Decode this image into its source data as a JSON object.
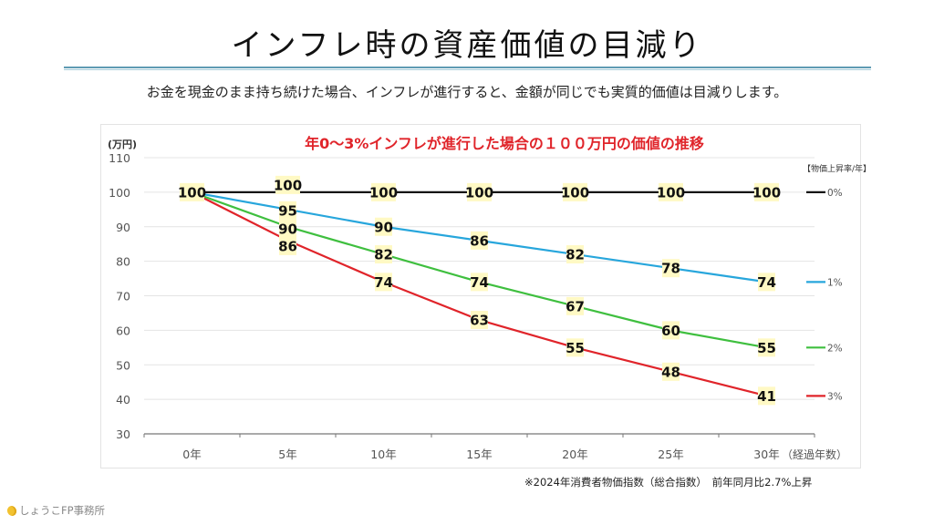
{
  "header": {
    "title": "インフレ時の資産価値の目減り",
    "subtitle": "お金を現金のまま持ち続けた場合、インフレが進行すると、金額が同じでも実質的価値は目減りします。"
  },
  "footer": {
    "note": "※2024年消費者物価指数（総合指数）　前年同月比2.7%上昇",
    "brand": "しょうこFP事務所",
    "brand_icon": "lemon-icon"
  },
  "chart_data": {
    "type": "line",
    "title": "年0〜3%インフレが進行した場合の１００万円の価値の推移",
    "title_color": "#e0242a",
    "ylabel": "(万円)",
    "xlabel": "（経過年数）",
    "ylim": [
      30,
      110
    ],
    "yticks": [
      30,
      40,
      50,
      60,
      70,
      80,
      90,
      100,
      110
    ],
    "ytick_labels": [
      "30",
      "40",
      "50",
      "60",
      "70",
      "80",
      "90",
      "100",
      "110"
    ],
    "categories": [
      "0年",
      "5年",
      "10年",
      "15年",
      "20年",
      "25年",
      "30年"
    ],
    "grid": true,
    "legend_title": "【物価上昇率/年】",
    "legend_position": "right",
    "data_label_bg": "#fff9c4",
    "series": [
      {
        "name": "0%",
        "color": "#111111",
        "values": [
          100,
          100,
          100,
          100,
          100,
          100,
          100
        ],
        "labels": [
          true,
          true,
          true,
          true,
          true,
          true,
          true
        ]
      },
      {
        "name": "1%",
        "color": "#27a6dc",
        "values": [
          100,
          95,
          90,
          86,
          82,
          78,
          74
        ],
        "labels": [
          false,
          true,
          true,
          true,
          true,
          true,
          true
        ]
      },
      {
        "name": "2%",
        "color": "#3fbf3f",
        "values": [
          100,
          90,
          82,
          74,
          67,
          60,
          55
        ],
        "labels": [
          false,
          true,
          true,
          true,
          true,
          true,
          true
        ]
      },
      {
        "name": "3%",
        "color": "#e0242a",
        "values": [
          100,
          86,
          74,
          63,
          55,
          48,
          41
        ],
        "labels": [
          false,
          true,
          true,
          true,
          true,
          true,
          true
        ]
      }
    ]
  }
}
